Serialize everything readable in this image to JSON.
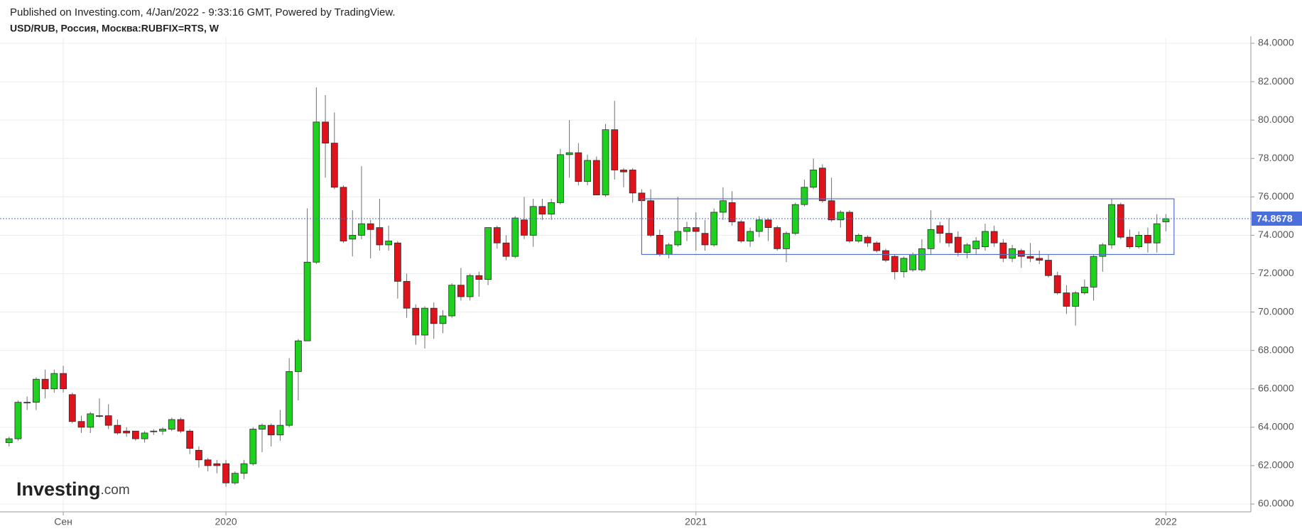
{
  "header": {
    "published": "Published on Investing.com, 4/Jan/2022 - 9:33:16 GMT, Powered by TradingView.",
    "symbol": "USD/RUB, Россия, Москва:RUBFIX=RTS, W"
  },
  "logo": {
    "brand": "Investing",
    "suffix": ".com"
  },
  "chart_data": {
    "type": "candlestick",
    "up_color": "#1fd11f",
    "down_color": "#e0121b",
    "wick_color": "#707070",
    "grid": true,
    "ylim": [
      60,
      84
    ],
    "yticks": [
      {
        "value": 60,
        "label": "60.0000"
      },
      {
        "value": 62,
        "label": "62.0000"
      },
      {
        "value": 64,
        "label": "64.0000"
      },
      {
        "value": 66,
        "label": "66.0000"
      },
      {
        "value": 68,
        "label": "68.0000"
      },
      {
        "value": 70,
        "label": "70.0000"
      },
      {
        "value": 72,
        "label": "72.0000"
      },
      {
        "value": 74,
        "label": "74.0000"
      },
      {
        "value": 76,
        "label": "76.0000"
      },
      {
        "value": 78,
        "label": "78.0000"
      },
      {
        "value": 80,
        "label": "80.0000"
      },
      {
        "value": 82,
        "label": "82.0000"
      },
      {
        "value": 84,
        "label": "84.0000"
      }
    ],
    "xlim": [
      -1,
      137.4
    ],
    "xticks": [
      {
        "value": 6,
        "label": "Сен"
      },
      {
        "value": 24,
        "label": "2020"
      },
      {
        "value": 76,
        "label": "2021"
      },
      {
        "value": 128,
        "label": "2022"
      }
    ],
    "last_price": {
      "value": 74.8678,
      "label": "74.8678",
      "color": "#4a6fdc"
    },
    "range_box": {
      "x": [
        70,
        128.9
      ],
      "y": [
        73.0,
        75.9
      ],
      "color": "#5470c6"
    },
    "open": [
      63.2,
      63.4,
      65.3,
      65.3,
      66.5,
      66.0,
      66.8,
      65.7,
      64.3,
      64.0,
      64.6,
      64.6,
      64.1,
      63.8,
      63.8,
      63.4,
      63.8,
      63.8,
      63.9,
      64.4,
      63.8,
      62.8,
      62.3,
      62.1,
      62.1,
      61.1,
      61.6,
      62.1,
      63.9,
      64.1,
      63.6,
      64.1,
      66.9,
      68.5,
      72.6,
      79.9,
      78.8,
      76.5,
      73.8,
      74.0,
      74.6,
      74.4,
      73.5,
      73.6,
      71.6,
      70.2,
      68.8,
      70.2,
      69.4,
      69.8,
      71.4,
      70.8,
      71.9,
      71.7,
      74.4,
      73.6,
      72.9,
      74.8,
      74.0,
      75.5,
      75.1,
      75.7,
      78.2,
      78.3,
      76.8,
      77.9,
      76.1,
      79.5,
      77.4,
      77.4,
      76.2,
      75.8,
      74.0,
      73.0,
      73.5,
      74.2,
      74.4,
      74.1,
      73.5,
      75.2,
      75.7,
      74.7,
      73.7,
      74.2,
      74.8,
      74.4,
      73.3,
      74.1,
      75.6,
      76.5,
      77.5,
      75.8,
      74.8,
      75.2,
      73.7,
      73.9,
      73.6,
      73.2,
      72.9,
      72.1,
      72.2,
      72.2,
      73.3,
      74.5,
      74.1,
      73.9,
      73.1,
      73.3,
      73.4,
      74.2,
      73.6,
      72.8,
      73.2,
      72.9,
      72.8,
      72.7,
      71.9,
      71.0,
      70.3,
      71.0,
      71.3,
      72.9,
      73.5,
      75.6,
      73.9,
      73.4,
      74.0,
      73.6,
      74.7
    ],
    "high": [
      63.5,
      65.4,
      65.6,
      66.6,
      67.0,
      67.0,
      67.2,
      65.8,
      64.6,
      64.8,
      65.5,
      65.2,
      64.4,
      64.0,
      63.8,
      63.8,
      63.9,
      64.0,
      64.5,
      64.5,
      63.9,
      63.0,
      62.4,
      62.3,
      62.3,
      61.7,
      62.3,
      64.0,
      64.2,
      64.2,
      64.9,
      67.6,
      68.6,
      75.4,
      81.7,
      81.3,
      80.4,
      76.6,
      75.3,
      77.6,
      74.8,
      75.9,
      74.5,
      73.7,
      72.0,
      70.4,
      70.3,
      70.5,
      70.1,
      71.5,
      72.3,
      72.0,
      72.1,
      74.4,
      74.5,
      74.0,
      75.0,
      76.0,
      75.9,
      75.9,
      75.9,
      78.5,
      80.0,
      78.8,
      78.2,
      78.1,
      79.8,
      81.0,
      77.5,
      77.5,
      76.4,
      76.4,
      74.3,
      73.6,
      76.0,
      74.7,
      75.2,
      74.8,
      75.4,
      76.5,
      76.3,
      74.8,
      74.4,
      75.0,
      74.9,
      74.5,
      74.2,
      75.7,
      76.9,
      78.0,
      77.7,
      77.0,
      75.3,
      75.3,
      74.1,
      74.0,
      73.7,
      73.3,
      73.0,
      72.9,
      73.1,
      73.8,
      75.3,
      74.7,
      74.9,
      74.2,
      73.6,
      73.9,
      74.6,
      74.5,
      73.8,
      73.5,
      73.3,
      73.6,
      73.2,
      73.0,
      72.1,
      71.4,
      71.1,
      71.7,
      73.0,
      73.6,
      75.9,
      75.7,
      74.3,
      74.2,
      74.4,
      75.1,
      75.1
    ],
    "low": [
      63.0,
      63.3,
      64.9,
      64.9,
      65.5,
      65.8,
      65.8,
      64.2,
      63.7,
      63.7,
      64.5,
      63.9,
      63.6,
      63.5,
      63.3,
      63.2,
      63.6,
      63.6,
      63.8,
      63.7,
      62.6,
      61.9,
      61.7,
      61.6,
      60.9,
      61.0,
      61.3,
      62.0,
      62.7,
      63.0,
      63.3,
      64.0,
      65.4,
      68.5,
      72.5,
      77.0,
      76.4,
      73.6,
      72.9,
      73.8,
      72.8,
      73.2,
      73.2,
      70.7,
      69.7,
      68.3,
      68.1,
      68.6,
      68.9,
      69.7,
      70.6,
      70.6,
      70.8,
      71.4,
      73.3,
      72.7,
      72.8,
      73.8,
      73.4,
      74.8,
      74.8,
      75.6,
      77.0,
      76.6,
      76.6,
      76.1,
      76.0,
      76.9,
      76.5,
      75.7,
      75.5,
      73.9,
      72.9,
      72.8,
      73.4,
      73.7,
      73.2,
      73.2,
      73.4,
      74.8,
      74.5,
      73.6,
      73.4,
      73.9,
      73.7,
      73.2,
      72.6,
      74.0,
      75.5,
      76.4,
      75.7,
      74.7,
      74.4,
      73.6,
      73.6,
      73.4,
      73.1,
      72.6,
      71.7,
      71.8,
      72.1,
      72.1,
      73.0,
      73.6,
      73.4,
      72.9,
      72.8,
      73.0,
      73.2,
      73.4,
      72.6,
      72.6,
      72.3,
      72.6,
      72.5,
      71.8,
      70.9,
      69.9,
      69.3,
      70.9,
      70.6,
      72.1,
      73.3,
      73.8,
      73.3,
      73.3,
      73.1,
      73.1,
      74.2
    ],
    "close": [
      63.4,
      65.3,
      65.3,
      66.5,
      66.0,
      66.8,
      66.0,
      64.3,
      64.0,
      64.7,
      64.6,
      64.1,
      63.7,
      63.7,
      63.4,
      63.7,
      63.8,
      63.9,
      64.4,
      63.8,
      62.9,
      62.3,
      62.0,
      62.0,
      61.1,
      61.6,
      62.1,
      63.9,
      64.1,
      63.6,
      64.1,
      66.9,
      68.5,
      72.6,
      79.9,
      78.8,
      76.5,
      73.7,
      74.0,
      74.6,
      74.3,
      73.5,
      73.7,
      71.6,
      70.2,
      68.8,
      70.2,
      69.4,
      69.8,
      71.4,
      70.8,
      71.9,
      71.7,
      74.4,
      73.6,
      72.9,
      74.9,
      74.0,
      75.5,
      75.1,
      75.7,
      78.2,
      78.3,
      76.8,
      77.9,
      76.1,
      79.5,
      77.4,
      77.3,
      76.2,
      75.8,
      74.0,
      73.0,
      73.5,
      74.2,
      74.4,
      74.2,
      73.5,
      75.2,
      75.8,
      74.7,
      73.7,
      74.2,
      74.8,
      74.4,
      73.3,
      74.1,
      75.6,
      76.5,
      77.4,
      75.8,
      74.8,
      75.2,
      73.7,
      74.0,
      73.6,
      73.2,
      72.7,
      72.1,
      72.8,
      73.0,
      73.3,
      74.3,
      74.1,
      73.6,
      73.1,
      73.5,
      73.7,
      74.2,
      73.6,
      72.8,
      73.3,
      72.9,
      72.8,
      72.7,
      71.9,
      71.0,
      70.3,
      71.0,
      71.3,
      72.9,
      73.5,
      75.6,
      73.9,
      73.4,
      74.0,
      73.6,
      74.6,
      74.8678
    ]
  }
}
